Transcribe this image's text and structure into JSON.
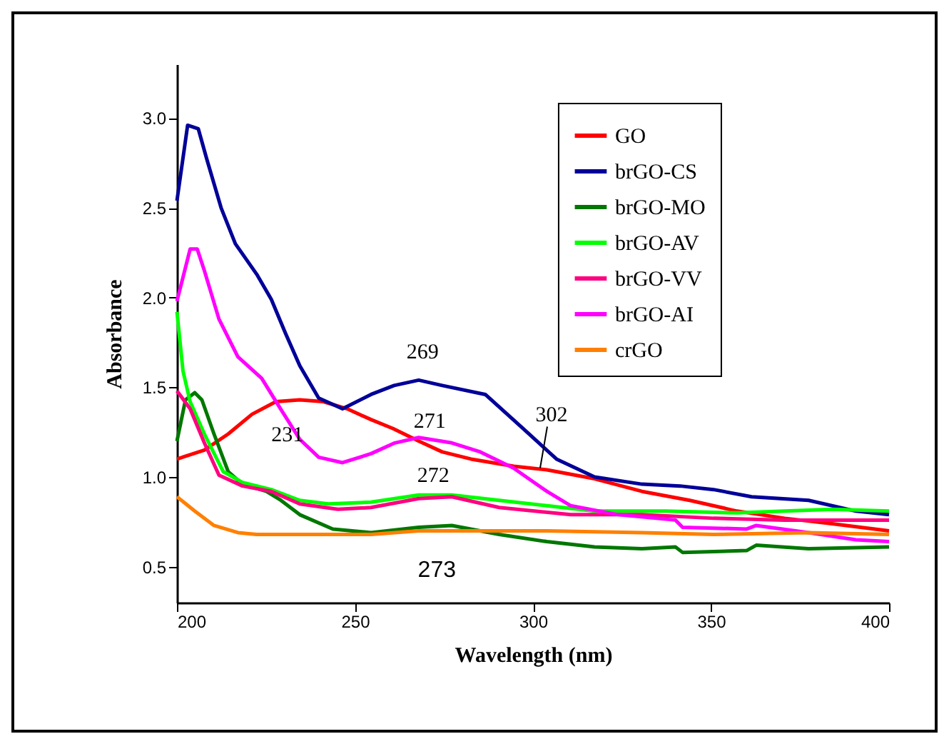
{
  "chart_data": {
    "type": "line",
    "xlabel": "Wavelength (nm)",
    "ylabel": "Absorbance",
    "xlim": [
      200,
      400
    ],
    "xticks": [
      200,
      250,
      300,
      350,
      400
    ],
    "ylim": [
      0.3,
      3.3
    ],
    "yticks": [
      0.5,
      {
        "value": 1,
        "label": "1.0"
      },
      1.5,
      {
        "value": 2,
        "label": "2.0"
      },
      2.5,
      {
        "value": 3,
        "label": "3.0"
      }
    ],
    "legend": "top right",
    "grid": false,
    "line_style": "solid",
    "marker": "none",
    "annotations": [
      {
        "text": "231",
        "x": 231,
        "y": 1.43
      },
      {
        "text": "269",
        "x": 269,
        "y": 1.54
      },
      {
        "text": "271",
        "x": 271,
        "y": 1.21
      },
      {
        "text": "272",
        "x": 272,
        "y": 0.9
      },
      {
        "text": "273",
        "x": 273,
        "y": 0.72
      },
      {
        "text": "302",
        "x": 302,
        "y": 1.05
      }
    ],
    "series": [
      {
        "name": "GO",
        "color": "#ff0000",
        "x": [
          200,
          207.7,
          214.4,
          221.1,
          227.8,
          234.5,
          241.1,
          247.8,
          254.5,
          260.7,
          267.9,
          274.5,
          282.6,
          294.6,
          303.9,
          317.3,
          330.6,
          344,
          357.3,
          370.7,
          384,
          400
        ],
        "values": [
          1.1,
          1.15,
          1.24,
          1.35,
          1.42,
          1.43,
          1.42,
          1.38,
          1.32,
          1.27,
          1.2,
          1.14,
          1.1,
          1.06,
          1.04,
          0.99,
          0.92,
          0.87,
          0.81,
          0.77,
          0.74,
          0.7
        ]
      },
      {
        "name": "brGO-CS",
        "color": "#000099",
        "x": [
          200,
          203,
          206,
          208.4,
          212.4,
          216.4,
          222.4,
          226.5,
          230.5,
          234.5,
          239.8,
          246.5,
          254.5,
          261,
          267.9,
          274.5,
          286.6,
          297.2,
          306.6,
          317.3,
          330.6,
          341.3,
          350.7,
          361.4,
          377.4,
          390.7,
          400
        ],
        "values": [
          2.54,
          2.96,
          2.94,
          2.77,
          2.5,
          2.3,
          2.13,
          1.99,
          1.8,
          1.62,
          1.44,
          1.38,
          1.46,
          1.51,
          1.54,
          1.51,
          1.46,
          1.27,
          1.1,
          1.0,
          0.96,
          0.95,
          0.93,
          0.89,
          0.87,
          0.81,
          0.79
        ]
      },
      {
        "name": "brGO-MO",
        "color": "#007700",
        "x": [
          200,
          202.4,
          205,
          207,
          210.4,
          214.4,
          218.4,
          225.1,
          229.2,
          234.5,
          243.8,
          254.5,
          267.9,
          277.2,
          290.5,
          303.9,
          317.3,
          330.6,
          340,
          342,
          360,
          362.7,
          377.4,
          400
        ],
        "values": [
          1.2,
          1.43,
          1.47,
          1.43,
          1.24,
          1.03,
          0.96,
          0.92,
          0.87,
          0.79,
          0.71,
          0.69,
          0.72,
          0.73,
          0.68,
          0.64,
          0.61,
          0.6,
          0.61,
          0.58,
          0.59,
          0.62,
          0.6,
          0.61
        ]
      },
      {
        "name": "brGO-AV",
        "color": "#00ff00",
        "x": [
          200,
          201.7,
          203.7,
          207.7,
          213,
          218.4,
          226.5,
          234.5,
          242.5,
          254.5,
          267.9,
          277.2,
          290.5,
          303.9,
          317.3,
          337.3,
          357.3,
          370.7,
          384,
          400
        ],
        "values": [
          1.92,
          1.59,
          1.42,
          1.24,
          1.03,
          0.97,
          0.93,
          0.87,
          0.85,
          0.86,
          0.9,
          0.9,
          0.87,
          0.84,
          0.81,
          0.81,
          0.8,
          0.81,
          0.82,
          0.81
        ]
      },
      {
        "name": "brGO-VV",
        "color": "#ff0080",
        "x": [
          200,
          203.7,
          207.7,
          211.8,
          218.4,
          226.5,
          234.5,
          245.2,
          254.5,
          267.9,
          277.2,
          290.5,
          310.6,
          330.6,
          350.7,
          370.7,
          400
        ],
        "values": [
          1.48,
          1.38,
          1.19,
          1.01,
          0.95,
          0.92,
          0.85,
          0.82,
          0.83,
          0.88,
          0.89,
          0.83,
          0.79,
          0.79,
          0.77,
          0.76,
          0.76
        ]
      },
      {
        "name": "brGO-AI",
        "color": "#ff00ff",
        "x": [
          200,
          203.7,
          205.7,
          207.7,
          211.8,
          217.1,
          223.8,
          229.1,
          234.5,
          239.8,
          246.5,
          254.5,
          261.2,
          267.9,
          277.2,
          285.2,
          294.5,
          303.9,
          310.6,
          324,
          340,
          342,
          360,
          362.7,
          377.4,
          390.7,
          400
        ],
        "values": [
          1.98,
          2.27,
          2.27,
          2.15,
          1.88,
          1.67,
          1.55,
          1.38,
          1.21,
          1.11,
          1.08,
          1.13,
          1.19,
          1.22,
          1.19,
          1.14,
          1.05,
          0.92,
          0.84,
          0.79,
          0.76,
          0.72,
          0.71,
          0.73,
          0.69,
          0.65,
          0.64
        ]
      },
      {
        "name": "crGO",
        "color": "#ff8000",
        "x": [
          200,
          205,
          210.4,
          217.1,
          222.4,
          241.1,
          254.5,
          267.9,
          281.2,
          294.6,
          303.9,
          330.6,
          350.7,
          377.4,
          400
        ],
        "values": [
          0.89,
          0.81,
          0.73,
          0.69,
          0.68,
          0.68,
          0.68,
          0.7,
          0.7,
          0.7,
          0.7,
          0.69,
          0.68,
          0.69,
          0.68
        ]
      }
    ]
  }
}
